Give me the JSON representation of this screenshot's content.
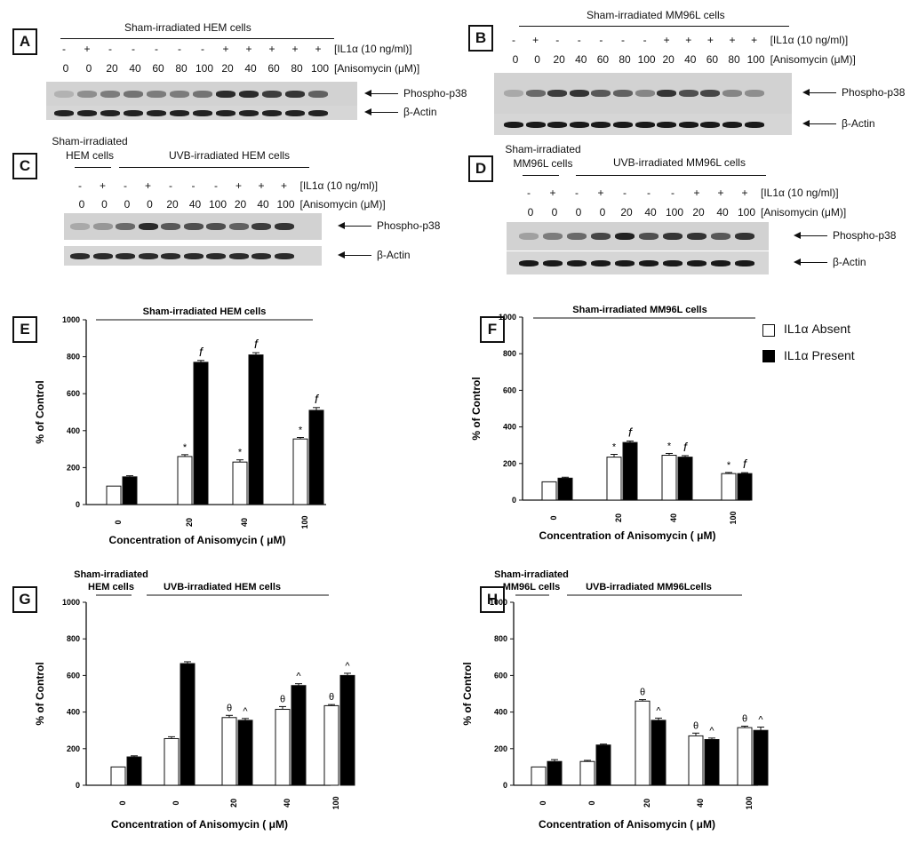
{
  "figure": {
    "lane_labels": {
      "il1": "[IL1α (10 ng/ml)]",
      "anisomycin": "[Anisomycin (μM)]",
      "phospho": "Phospho-p38",
      "actin": "β-Actin"
    },
    "blots": [
      {
        "letter": "A",
        "title": "Sham-irradiated HEM cells",
        "sub_title": "",
        "sub_title2": "",
        "il1": [
          "-",
          "+",
          "-",
          "-",
          "-",
          "-",
          "-",
          "+",
          "+",
          "+",
          "+",
          "+"
        ],
        "aniso": [
          "0",
          "0",
          "20",
          "40",
          "60",
          "80",
          "100",
          "20",
          "40",
          "60",
          "80",
          "100"
        ],
        "phospho_intensity": [
          0.15,
          0.35,
          0.45,
          0.5,
          0.45,
          0.45,
          0.5,
          0.9,
          0.9,
          0.8,
          0.85,
          0.6
        ],
        "actin_intensity": [
          0.95,
          0.95,
          0.95,
          0.95,
          0.95,
          0.95,
          0.95,
          0.95,
          0.95,
          0.95,
          0.95,
          0.95
        ]
      },
      {
        "letter": "B",
        "title": "Sham-irradiated MM96L cells",
        "sub_title": "",
        "sub_title2": "",
        "il1": [
          "-",
          "+",
          "-",
          "-",
          "-",
          "-",
          "-",
          "+",
          "+",
          "+",
          "+",
          "+"
        ],
        "aniso": [
          "0",
          "0",
          "20",
          "40",
          "60",
          "80",
          "100",
          "20",
          "40",
          "60",
          "80",
          "100"
        ],
        "phospho_intensity": [
          0.2,
          0.55,
          0.8,
          0.85,
          0.65,
          0.6,
          0.4,
          0.85,
          0.7,
          0.75,
          0.4,
          0.35
        ],
        "actin_intensity": [
          1,
          1,
          1,
          1,
          1,
          1,
          1,
          1,
          1,
          1,
          1,
          1
        ]
      },
      {
        "letter": "C",
        "title": "UVB-irradiated HEM cells",
        "sub_title": "Sham-irradiated",
        "sub_title2": "HEM cells",
        "il1": [
          "-",
          "+",
          "-",
          "+",
          "-",
          "-",
          "-",
          "+",
          "+",
          "+"
        ],
        "aniso": [
          "0",
          "0",
          "0",
          "0",
          "20",
          "40",
          "100",
          "20",
          "40",
          "100"
        ],
        "phospho_intensity": [
          0.2,
          0.3,
          0.55,
          0.9,
          0.65,
          0.7,
          0.7,
          0.6,
          0.8,
          0.85
        ],
        "actin_intensity": [
          0.9,
          0.9,
          0.9,
          0.9,
          0.9,
          0.9,
          0.9,
          0.9,
          0.9,
          0.9
        ]
      },
      {
        "letter": "D",
        "title": "UVB-irradiated MM96L cells",
        "sub_title": "Sham-irradiated",
        "sub_title2": "MM96L cells",
        "il1": [
          "-",
          "+",
          "-",
          "+",
          "-",
          "-",
          "-",
          "+",
          "+",
          "+"
        ],
        "aniso": [
          "0",
          "0",
          "0",
          "0",
          "20",
          "40",
          "100",
          "20",
          "40",
          "100"
        ],
        "phospho_intensity": [
          0.25,
          0.45,
          0.55,
          0.75,
          0.95,
          0.7,
          0.85,
          0.85,
          0.65,
          0.85
        ],
        "actin_intensity": [
          1,
          1,
          1,
          1,
          1,
          1,
          1,
          1,
          1,
          1
        ]
      }
    ],
    "legend": {
      "absent": "IL1α Absent",
      "present": "IL1α Present"
    },
    "colors": {
      "absent": "#ffffff",
      "present": "#000000",
      "outline": "#111111"
    }
  },
  "chart_data": [
    {
      "letter": "E",
      "type": "bar",
      "title": "Sham-irradiated  HEM cells",
      "title2": "",
      "xlabel": "Concentration of Anisomycin ( μM)",
      "ylabel": "% of Control",
      "ylim": [
        0,
        1000
      ],
      "yticks": [
        "0",
        "200",
        "400",
        "600",
        "800",
        "1000"
      ],
      "categories": [
        "0",
        "20",
        "40",
        "100"
      ],
      "series": [
        {
          "name": "IL1α Absent",
          "values": [
            100,
            260,
            230,
            355
          ],
          "errors": [
            0,
            10,
            12,
            8
          ],
          "marks": [
            "",
            "*",
            "*",
            "*"
          ]
        },
        {
          "name": "IL1α Present",
          "values": [
            150,
            770,
            810,
            510
          ],
          "errors": [
            6,
            10,
            12,
            15
          ],
          "marks": [
            "",
            "f",
            "f",
            "f"
          ]
        }
      ]
    },
    {
      "letter": "F",
      "type": "bar",
      "title": "Sham-irradiated MM96L cells",
      "title2": "",
      "xlabel": "Concentration of Anisomycin ( μM)",
      "ylabel": "% of Control",
      "ylim": [
        0,
        1000
      ],
      "yticks": [
        "0",
        "200",
        "400",
        "600",
        "800",
        "1000"
      ],
      "categories": [
        "0",
        "20",
        "40",
        "100"
      ],
      "series": [
        {
          "name": "IL1α Absent",
          "values": [
            100,
            235,
            245,
            145
          ],
          "errors": [
            0,
            15,
            10,
            6
          ],
          "marks": [
            "",
            "*",
            "*",
            "*"
          ]
        },
        {
          "name": "IL1α Present",
          "values": [
            120,
            315,
            235,
            145
          ],
          "errors": [
            5,
            8,
            8,
            5
          ],
          "marks": [
            "",
            "f",
            "f",
            "f"
          ]
        }
      ]
    },
    {
      "letter": "G",
      "type": "bar",
      "title": "UVB-irradiated HEM cells",
      "title2": "Sham-irradiated|HEM cells",
      "xlabel": "Concentration of Anisomycin ( μM)",
      "ylabel": "% of Control",
      "ylim": [
        0,
        1000
      ],
      "yticks": [
        "0",
        "200",
        "400",
        "600",
        "800",
        "1000"
      ],
      "categories": [
        "0",
        "0",
        "20",
        "40",
        "100"
      ],
      "series": [
        {
          "name": "IL1α Absent",
          "values": [
            100,
            255,
            370,
            415,
            435
          ],
          "errors": [
            0,
            10,
            12,
            15,
            6
          ],
          "marks": [
            "",
            "",
            "θ",
            "θ",
            "θ"
          ]
        },
        {
          "name": "IL1α Present",
          "values": [
            155,
            665,
            355,
            545,
            600
          ],
          "errors": [
            6,
            10,
            10,
            10,
            12
          ],
          "marks": [
            "",
            "",
            "^",
            "^",
            "^"
          ]
        }
      ]
    },
    {
      "letter": "H",
      "type": "bar",
      "title": "UVB-irradiated MM96Lcells",
      "title2": "Sham-irradiated|MM96L cells",
      "xlabel": "Concentration of Anisomycin ( μM)",
      "ylabel": "% of Control",
      "ylim": [
        0,
        1000
      ],
      "yticks": [
        "0",
        "200",
        "400",
        "600",
        "800",
        "1000"
      ],
      "categories": [
        "0",
        "0",
        "20",
        "40",
        "100"
      ],
      "series": [
        {
          "name": "IL1α Absent",
          "values": [
            100,
            130,
            460,
            270,
            315
          ],
          "errors": [
            0,
            6,
            8,
            15,
            8
          ],
          "marks": [
            "",
            "",
            "θ",
            "θ",
            "θ"
          ]
        },
        {
          "name": "IL1α Present",
          "values": [
            130,
            220,
            355,
            250,
            300
          ],
          "errors": [
            10,
            5,
            12,
            8,
            18
          ],
          "marks": [
            "",
            "",
            "^",
            "^",
            "^"
          ]
        }
      ]
    }
  ]
}
